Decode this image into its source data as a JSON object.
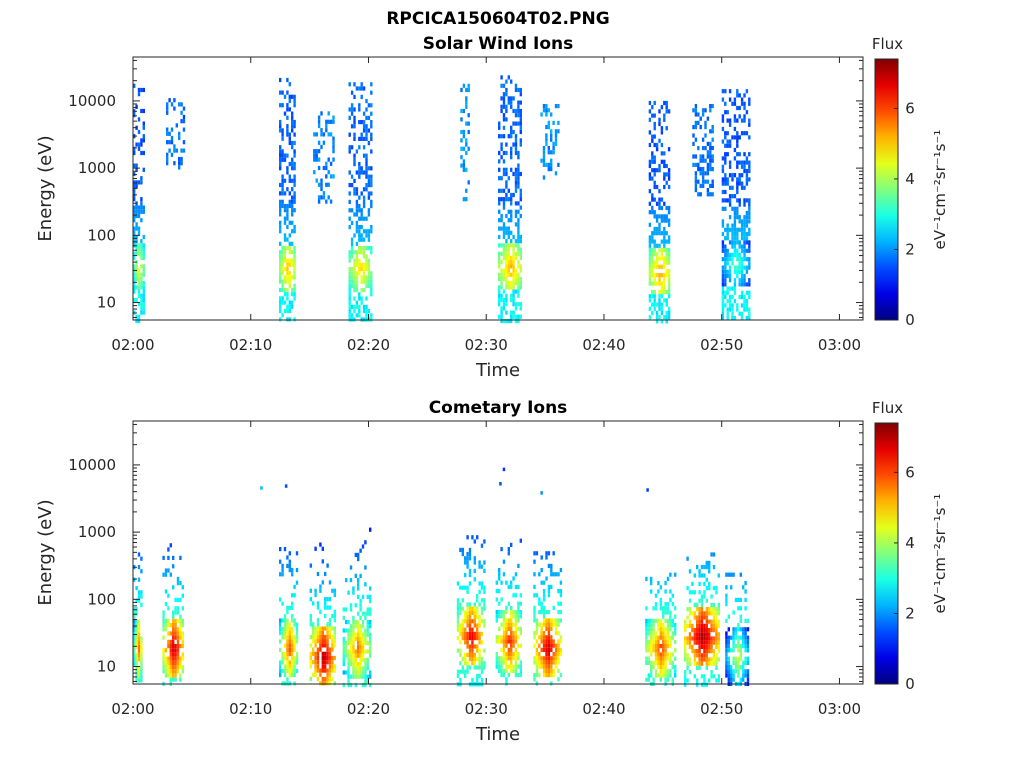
{
  "figure": {
    "title": "RPCICA150604T02.PNG"
  },
  "colorbar": {
    "title": "Flux",
    "unit": "eV⁻¹cm⁻²sr⁻¹s⁻¹",
    "ticks": [
      "0",
      "2",
      "4",
      "6"
    ],
    "range": [
      0,
      7.4
    ],
    "colormap": "jet"
  },
  "chart_data": [
    {
      "type": "heatmap",
      "title": "Solar Wind Ions",
      "xlabel": "Time",
      "ylabel": "Energy (eV)",
      "x_ticks": [
        "02:00",
        "02:10",
        "02:20",
        "02:30",
        "02:40",
        "02:50",
        "03:00"
      ],
      "xlim_minutes": [
        0,
        62
      ],
      "y_scale": "log",
      "y_ticks": [
        "10",
        "100",
        "1000",
        "10000"
      ],
      "ylim": [
        5.5,
        45000
      ],
      "bursts": [
        {
          "t_start": 0.0,
          "t_end": 0.9,
          "e_max": 18000,
          "core_energy": 35,
          "core_flux": 4.6,
          "high_energy_flux": 1.3
        },
        {
          "t_start": 2.8,
          "t_end": 4.3,
          "e_min": 1000,
          "e_max": 11000,
          "core_energy": 0,
          "core_flux": 0,
          "high_energy_flux": 1.4
        },
        {
          "t_start": 12.4,
          "t_end": 13.8,
          "e_max": 22000,
          "core_energy": 35,
          "core_flux": 5.2,
          "high_energy_flux": 1.4
        },
        {
          "t_start": 15.3,
          "t_end": 17.0,
          "e_min": 300,
          "e_max": 7000,
          "core_energy": 0,
          "core_flux": 0,
          "high_energy_flux": 1.6
        },
        {
          "t_start": 18.3,
          "t_end": 20.2,
          "e_max": 19000,
          "core_energy": 35,
          "core_flux": 5.0,
          "high_energy_flux": 1.4
        },
        {
          "t_start": 27.8,
          "t_end": 28.6,
          "e_min": 250,
          "e_max": 18000,
          "core_energy": 0,
          "core_flux": 0,
          "high_energy_flux": 1.7
        },
        {
          "t_start": 31.0,
          "t_end": 33.0,
          "e_max": 24000,
          "core_energy": 35,
          "core_flux": 5.3,
          "high_energy_flux": 1.4
        },
        {
          "t_start": 34.6,
          "t_end": 36.1,
          "e_min": 700,
          "e_max": 9000,
          "core_energy": 0,
          "core_flux": 0,
          "high_energy_flux": 1.7
        },
        {
          "t_start": 43.8,
          "t_end": 45.6,
          "e_max": 10000,
          "core_energy": 30,
          "core_flux": 5.4,
          "high_energy_flux": 1.3
        },
        {
          "t_start": 47.5,
          "t_end": 49.3,
          "e_min": 400,
          "e_max": 9000,
          "core_energy": 80,
          "core_flux": 4.6,
          "high_energy_flux": 1.5
        },
        {
          "t_start": 50.0,
          "t_end": 52.3,
          "e_max": 15000,
          "core_energy": 40,
          "core_flux": 3.4,
          "high_energy_flux": 1.3
        }
      ]
    },
    {
      "type": "heatmap",
      "title": "Cometary Ions",
      "xlabel": "Time",
      "ylabel": "Energy (eV)",
      "x_ticks": [
        "02:00",
        "02:10",
        "02:20",
        "02:30",
        "02:40",
        "02:50",
        "03:00"
      ],
      "xlim_minutes": [
        0,
        62
      ],
      "y_scale": "log",
      "y_ticks": [
        "10",
        "100",
        "1000",
        "10000"
      ],
      "ylim": [
        5.5,
        45000
      ],
      "bursts": [
        {
          "t_start": 0.0,
          "t_end": 0.8,
          "e_max": 500,
          "core_energy": 20,
          "core_flux": 5.8
        },
        {
          "t_start": 2.5,
          "t_end": 4.3,
          "e_max": 2500,
          "core_energy": 20,
          "core_flux": 7.0
        },
        {
          "t_start": 12.4,
          "t_end": 14.0,
          "e_max": 600,
          "core_energy": 20,
          "core_flux": 6.0
        },
        {
          "t_start": 15.0,
          "t_end": 17.2,
          "e_max": 700,
          "core_energy": 15,
          "core_flux": 7.2
        },
        {
          "t_start": 17.8,
          "t_end": 20.2,
          "e_max": 1800,
          "core_energy": 20,
          "core_flux": 5.8
        },
        {
          "t_start": 27.5,
          "t_end": 29.8,
          "e_max": 900,
          "core_energy": 30,
          "core_flux": 6.8
        },
        {
          "t_start": 30.8,
          "t_end": 33.0,
          "e_max": 800,
          "core_energy": 25,
          "core_flux": 6.4
        },
        {
          "t_start": 34.0,
          "t_end": 36.3,
          "e_max": 600,
          "core_energy": 20,
          "core_flux": 7.0
        },
        {
          "t_start": 43.5,
          "t_end": 46.0,
          "e_max": 250,
          "core_energy": 20,
          "core_flux": 6.2
        },
        {
          "t_start": 46.8,
          "t_end": 49.8,
          "e_max": 500,
          "core_energy": 30,
          "core_flux": 7.3
        },
        {
          "t_start": 50.3,
          "t_end": 52.3,
          "e_max": 250,
          "core_energy": 15,
          "core_flux": 4.5
        }
      ],
      "isolated_points": [
        {
          "t": 10.8,
          "e": 4500,
          "flux": 2.3
        },
        {
          "t": 12.9,
          "e": 4800,
          "flux": 1.5
        },
        {
          "t": 31.4,
          "e": 8500,
          "flux": 1.3
        },
        {
          "t": 31.1,
          "e": 5200,
          "flux": 1.5
        },
        {
          "t": 34.6,
          "e": 3800,
          "flux": 2.0
        },
        {
          "t": 43.6,
          "e": 4200,
          "flux": 1.4
        }
      ]
    }
  ]
}
